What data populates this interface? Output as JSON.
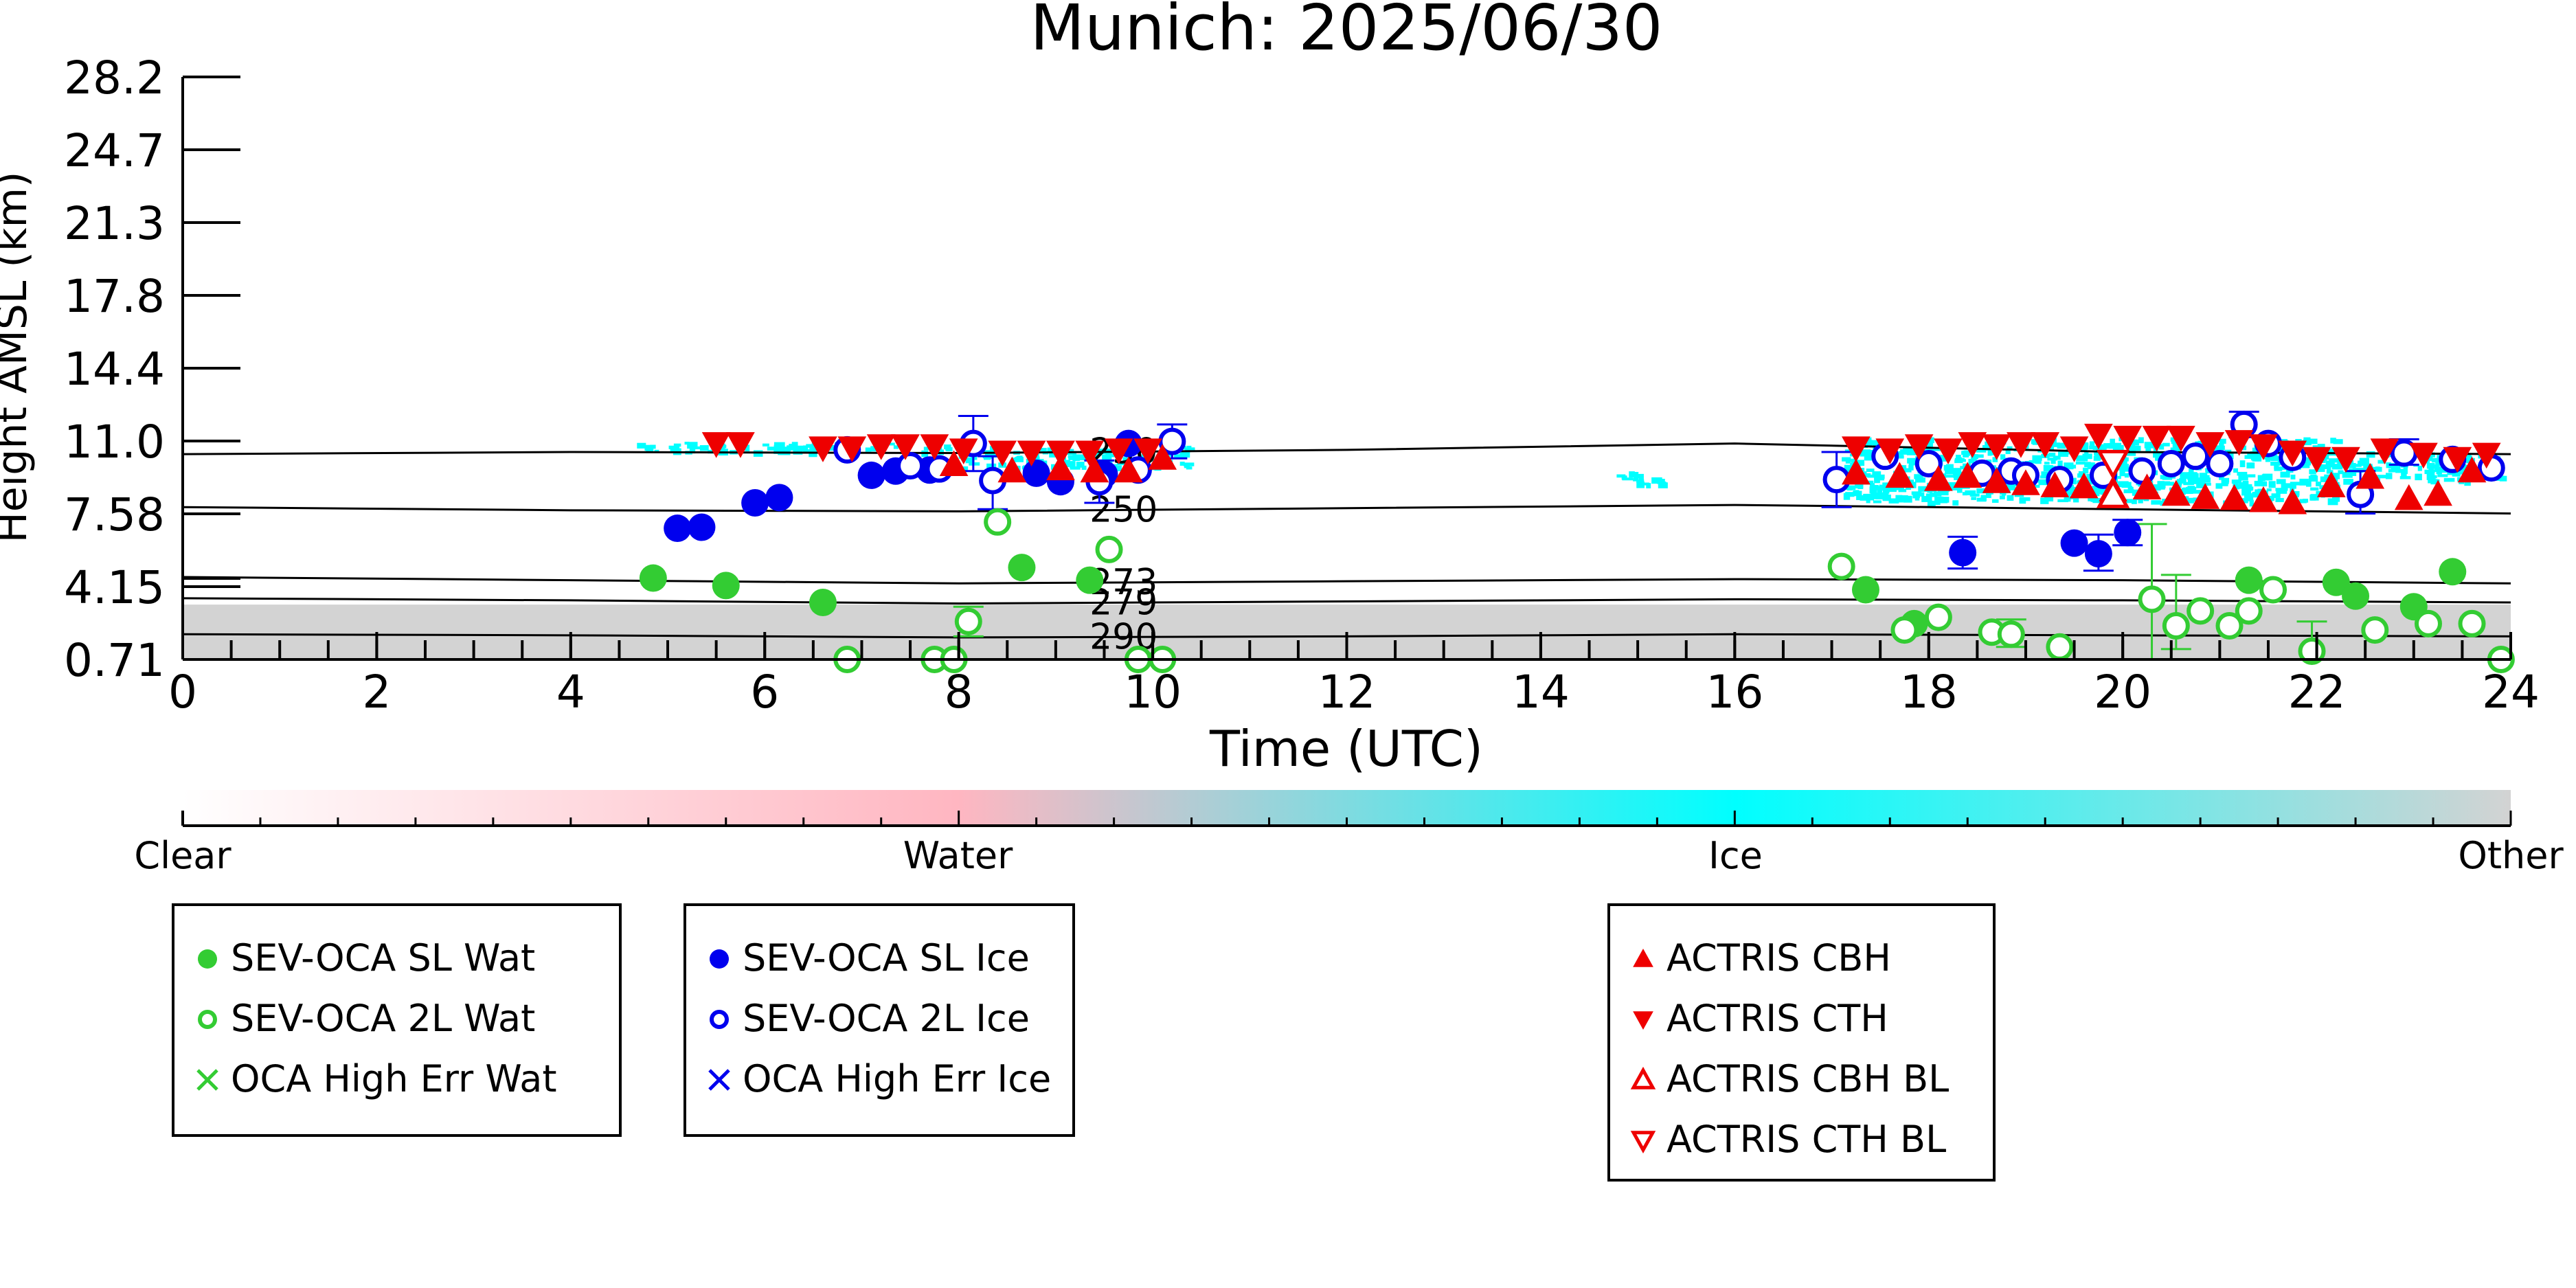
{
  "colors": {
    "sl_water": "#33cc33",
    "twol_water": "#33cc33",
    "ice": "#0000ee",
    "actris": "#ee0000",
    "other": "#d3d3d3",
    "water_band": "#ffb6c1",
    "ice_band": "#00ffff"
  },
  "chart_data": {
    "type": "scatter",
    "title": "Munich: 2025/06/30",
    "xlabel": "Time (UTC)",
    "ylabel": "Height AMSL (km)",
    "xlim": [
      0,
      24
    ],
    "ylim": [
      0.71,
      28.2
    ],
    "x_ticks": [
      "0",
      "2",
      "4",
      "6",
      "8",
      "10",
      "12",
      "14",
      "16",
      "18",
      "20",
      "22",
      "24"
    ],
    "y_ticks": [
      "0.71",
      "4.15",
      "7.58",
      "11.0",
      "14.4",
      "17.8",
      "21.3",
      "24.7",
      "28.2"
    ],
    "colorbar": {
      "labels": [
        "Clear",
        "Water",
        "Ice",
        "Other"
      ],
      "positions": [
        0,
        0.333,
        0.667,
        1.0
      ]
    },
    "isotherms": [
      {
        "label": "230",
        "label_x": 9.7,
        "heights": [
          [
            0,
            10.4
          ],
          [
            4,
            10.5
          ],
          [
            8,
            10.45
          ],
          [
            12,
            10.6
          ],
          [
            16,
            10.9
          ],
          [
            20,
            10.5
          ],
          [
            24,
            10.4
          ]
        ]
      },
      {
        "label": "250",
        "label_x": 9.7,
        "heights": [
          [
            0,
            7.9
          ],
          [
            4,
            7.75
          ],
          [
            8,
            7.7
          ],
          [
            12,
            7.85
          ],
          [
            16,
            8.0
          ],
          [
            20,
            7.8
          ],
          [
            24,
            7.6
          ]
        ]
      },
      {
        "label": "273",
        "label_x": 9.7,
        "heights": [
          [
            0,
            4.6
          ],
          [
            4,
            4.45
          ],
          [
            8,
            4.3
          ],
          [
            12,
            4.4
          ],
          [
            16,
            4.5
          ],
          [
            20,
            4.45
          ],
          [
            24,
            4.3
          ]
        ]
      },
      {
        "label": "279",
        "label_x": 9.7,
        "heights": [
          [
            0,
            3.6
          ],
          [
            4,
            3.5
          ],
          [
            8,
            3.35
          ],
          [
            12,
            3.45
          ],
          [
            16,
            3.55
          ],
          [
            20,
            3.5
          ],
          [
            24,
            3.4
          ]
        ]
      },
      {
        "label": "290",
        "label_x": 9.7,
        "heights": [
          [
            0,
            1.9
          ],
          [
            4,
            1.85
          ],
          [
            8,
            1.75
          ],
          [
            12,
            1.8
          ],
          [
            16,
            1.9
          ],
          [
            20,
            1.85
          ],
          [
            24,
            1.8
          ]
        ]
      }
    ],
    "other_band": {
      "bottom": 0.71,
      "top": 3.3
    },
    "series": [
      {
        "name": "SEV-OCA SL Wat",
        "marker": "filled-circle",
        "color": "#33cc33",
        "points": [
          [
            4.85,
            4.55
          ],
          [
            5.6,
            4.2
          ],
          [
            6.6,
            3.4
          ],
          [
            8.65,
            5.05
          ],
          [
            9.35,
            4.45
          ],
          [
            17.35,
            4.0
          ],
          [
            17.85,
            2.4
          ],
          [
            21.3,
            4.45
          ],
          [
            22.2,
            4.35
          ],
          [
            22.4,
            3.7
          ],
          [
            23.0,
            3.2
          ],
          [
            23.4,
            4.85
          ]
        ]
      },
      {
        "name": "SEV-OCA 2L Wat",
        "marker": "open-circle",
        "color": "#33cc33",
        "points": [
          [
            8.4,
            7.2
          ],
          [
            9.55,
            5.9
          ],
          [
            8.1,
            2.5
          ],
          [
            6.85,
            0.71
          ],
          [
            7.75,
            0.71
          ],
          [
            7.95,
            0.71
          ],
          [
            9.85,
            0.71
          ],
          [
            10.1,
            0.71
          ],
          [
            17.1,
            5.1
          ],
          [
            17.75,
            2.1
          ],
          [
            18.1,
            2.7
          ],
          [
            18.65,
            2.0
          ],
          [
            18.85,
            1.9
          ],
          [
            19.35,
            1.3
          ],
          [
            20.3,
            3.55
          ],
          [
            20.55,
            2.3
          ],
          [
            20.8,
            3.0
          ],
          [
            21.1,
            2.3
          ],
          [
            21.3,
            3.0
          ],
          [
            21.55,
            4.0
          ],
          [
            21.95,
            1.1
          ],
          [
            22.6,
            2.1
          ],
          [
            23.15,
            2.4
          ],
          [
            23.6,
            2.4
          ],
          [
            23.9,
            0.71
          ]
        ]
      },
      {
        "name": "OCA High Err Wat",
        "marker": "x",
        "color": "#33cc33",
        "points": []
      },
      {
        "name": "SEV-OCA SL Ice",
        "marker": "filled-circle",
        "color": "#0000ee",
        "points": [
          [
            5.1,
            6.9
          ],
          [
            5.35,
            6.95
          ],
          [
            5.9,
            8.1
          ],
          [
            6.15,
            8.35
          ],
          [
            7.1,
            9.4
          ],
          [
            7.35,
            9.6
          ],
          [
            7.7,
            9.65
          ],
          [
            8.8,
            9.5
          ],
          [
            9.05,
            9.1
          ],
          [
            9.5,
            9.45
          ],
          [
            9.75,
            10.9
          ],
          [
            18.35,
            5.75
          ],
          [
            19.5,
            6.2
          ],
          [
            19.75,
            5.7
          ],
          [
            20.05,
            6.7
          ]
        ]
      },
      {
        "name": "SEV-OCA 2L Ice",
        "marker": "open-circle",
        "color": "#0000ee",
        "points": [
          [
            6.85,
            10.6
          ],
          [
            7.5,
            9.85
          ],
          [
            7.8,
            9.7
          ],
          [
            8.15,
            10.9
          ],
          [
            8.35,
            9.15
          ],
          [
            9.45,
            9.1
          ],
          [
            9.85,
            9.65
          ],
          [
            10.2,
            11.0
          ],
          [
            17.05,
            9.2
          ],
          [
            17.55,
            10.3
          ],
          [
            18.0,
            9.95
          ],
          [
            18.55,
            9.5
          ],
          [
            18.85,
            9.6
          ],
          [
            19.0,
            9.4
          ],
          [
            19.35,
            9.2
          ],
          [
            19.8,
            9.4
          ],
          [
            20.2,
            9.6
          ],
          [
            20.5,
            9.95
          ],
          [
            20.75,
            10.3
          ],
          [
            21.0,
            9.95
          ],
          [
            21.25,
            11.8
          ],
          [
            21.5,
            10.9
          ],
          [
            21.75,
            10.25
          ],
          [
            22.45,
            8.5
          ],
          [
            22.9,
            10.45
          ],
          [
            23.4,
            10.15
          ],
          [
            23.8,
            9.75
          ]
        ]
      },
      {
        "name": "OCA High Err Ice",
        "marker": "x",
        "color": "#0000ee",
        "points": []
      },
      {
        "name": "ACTRIS CBH",
        "marker": "filled-triangle-up",
        "color": "#ee0000",
        "points": [
          [
            7.95,
            9.9
          ],
          [
            8.55,
            9.6
          ],
          [
            9.05,
            9.7
          ],
          [
            9.4,
            9.6
          ],
          [
            9.75,
            9.6
          ],
          [
            10.1,
            10.2
          ],
          [
            17.25,
            9.5
          ],
          [
            17.7,
            9.35
          ],
          [
            18.1,
            9.2
          ],
          [
            18.4,
            9.35
          ],
          [
            18.7,
            9.1
          ],
          [
            19.0,
            9.0
          ],
          [
            19.3,
            8.9
          ],
          [
            19.6,
            8.85
          ],
          [
            19.9,
            8.7
          ],
          [
            20.25,
            8.8
          ],
          [
            20.55,
            8.5
          ],
          [
            20.85,
            8.35
          ],
          [
            21.15,
            8.3
          ],
          [
            21.45,
            8.2
          ],
          [
            21.75,
            8.1
          ],
          [
            22.15,
            8.9
          ],
          [
            22.55,
            9.3
          ],
          [
            22.95,
            8.3
          ],
          [
            23.25,
            8.5
          ],
          [
            23.6,
            9.6
          ]
        ]
      },
      {
        "name": "ACTRIS CTH",
        "marker": "filled-triangle-down",
        "color": "#ee0000",
        "points": [
          [
            5.5,
            10.9
          ],
          [
            5.75,
            10.9
          ],
          [
            6.6,
            10.7
          ],
          [
            6.9,
            10.7
          ],
          [
            7.2,
            10.8
          ],
          [
            7.45,
            10.8
          ],
          [
            7.75,
            10.8
          ],
          [
            8.05,
            10.6
          ],
          [
            8.45,
            10.5
          ],
          [
            8.75,
            10.5
          ],
          [
            9.05,
            10.5
          ],
          [
            9.35,
            10.5
          ],
          [
            9.65,
            10.6
          ],
          [
            9.95,
            10.6
          ],
          [
            17.25,
            10.7
          ],
          [
            17.6,
            10.6
          ],
          [
            17.9,
            10.8
          ],
          [
            18.2,
            10.6
          ],
          [
            18.45,
            10.9
          ],
          [
            18.7,
            10.8
          ],
          [
            18.95,
            10.9
          ],
          [
            19.2,
            10.9
          ],
          [
            19.5,
            10.7
          ],
          [
            19.75,
            11.3
          ],
          [
            20.05,
            11.2
          ],
          [
            20.35,
            11.2
          ],
          [
            20.6,
            11.2
          ],
          [
            20.9,
            10.9
          ],
          [
            21.2,
            11.0
          ],
          [
            21.45,
            10.8
          ],
          [
            21.75,
            10.5
          ],
          [
            22.0,
            10.2
          ],
          [
            22.3,
            10.2
          ],
          [
            22.7,
            10.6
          ],
          [
            23.1,
            10.4
          ],
          [
            23.45,
            10.2
          ],
          [
            23.75,
            10.4
          ]
        ]
      },
      {
        "name": "ACTRIS CBH BL",
        "marker": "open-triangle-up",
        "color": "#ee0000",
        "points": [
          [
            19.9,
            8.45
          ]
        ]
      },
      {
        "name": "ACTRIS CTH BL",
        "marker": "open-triangle-down",
        "color": "#ee0000",
        "points": [
          [
            19.9,
            10.0
          ]
        ]
      }
    ],
    "error_bars": [
      {
        "x": 8.15,
        "low": 9.6,
        "high": 12.2,
        "color": "#0000ee"
      },
      {
        "x": 8.35,
        "low": 7.8,
        "high": 10.3,
        "color": "#0000ee"
      },
      {
        "x": 10.2,
        "low": 10.2,
        "high": 11.8,
        "color": "#0000ee"
      },
      {
        "x": 9.45,
        "low": 8.1,
        "high": 10.1,
        "color": "#0000ee"
      },
      {
        "x": 17.05,
        "low": 7.9,
        "high": 10.5,
        "color": "#0000ee"
      },
      {
        "x": 18.35,
        "low": 5.0,
        "high": 6.5,
        "color": "#0000ee"
      },
      {
        "x": 19.75,
        "low": 4.9,
        "high": 6.6,
        "color": "#0000ee"
      },
      {
        "x": 20.05,
        "low": 6.1,
        "high": 7.3,
        "color": "#0000ee"
      },
      {
        "x": 21.25,
        "low": 11.2,
        "high": 12.4,
        "color": "#0000ee"
      },
      {
        "x": 22.45,
        "low": 7.6,
        "high": 9.6,
        "color": "#0000ee"
      },
      {
        "x": 22.9,
        "low": 9.9,
        "high": 11.1,
        "color": "#0000ee"
      },
      {
        "x": 20.3,
        "low": 0.71,
        "high": 7.1,
        "color": "#33cc33"
      },
      {
        "x": 20.55,
        "low": 1.2,
        "high": 4.7,
        "color": "#33cc33"
      },
      {
        "x": 21.95,
        "low": 0.71,
        "high": 2.5,
        "color": "#33cc33"
      },
      {
        "x": 8.1,
        "low": 1.8,
        "high": 3.2,
        "color": "#33cc33"
      },
      {
        "x": 18.85,
        "low": 1.3,
        "high": 2.6,
        "color": "#33cc33"
      }
    ],
    "ice_mask": [
      [
        4.6,
        8.0,
        10.55,
        11.0
      ],
      [
        8.0,
        10.4,
        9.8,
        10.8
      ],
      [
        14.7,
        15.3,
        9.0,
        9.6
      ],
      [
        17.1,
        22.2,
        8.2,
        11.2
      ],
      [
        22.2,
        23.9,
        9.2,
        10.6
      ]
    ],
    "legend_boxes": [
      {
        "entries": [
          {
            "label": "SEV-OCA SL Wat",
            "marker": "filled-circle",
            "color": "#33cc33"
          },
          {
            "label": "SEV-OCA 2L Wat",
            "marker": "open-circle",
            "color": "#33cc33"
          },
          {
            "label": "OCA High Err Wat",
            "marker": "x",
            "color": "#33cc33"
          }
        ]
      },
      {
        "entries": [
          {
            "label": "SEV-OCA SL Ice",
            "marker": "filled-circle",
            "color": "#0000ee"
          },
          {
            "label": "SEV-OCA 2L Ice",
            "marker": "open-circle",
            "color": "#0000ee"
          },
          {
            "label": "OCA High Err Ice",
            "marker": "x",
            "color": "#0000ee"
          }
        ]
      },
      {
        "entries": [
          {
            "label": "ACTRIS CBH",
            "marker": "filled-triangle-up",
            "color": "#ee0000"
          },
          {
            "label": "ACTRIS CTH",
            "marker": "filled-triangle-down",
            "color": "#ee0000"
          },
          {
            "label": "ACTRIS CBH BL",
            "marker": "open-triangle-up",
            "color": "#ee0000"
          },
          {
            "label": "ACTRIS CTH BL",
            "marker": "open-triangle-down",
            "color": "#ee0000"
          }
        ]
      }
    ]
  }
}
